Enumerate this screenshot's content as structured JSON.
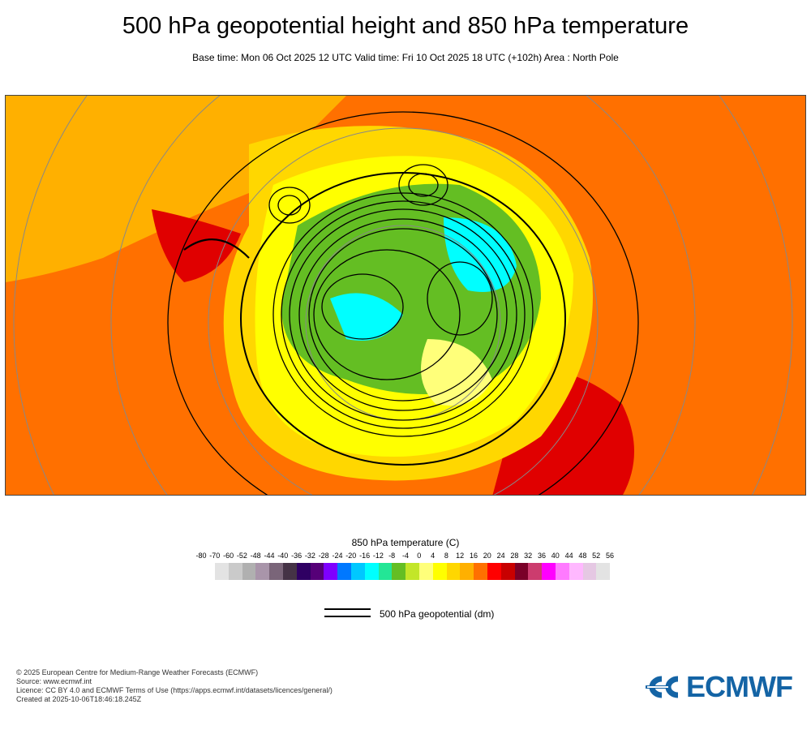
{
  "header": {
    "title": "500 hPa geopotential height and 850 hPa temperature",
    "subtitle": "Base time: Mon 06 Oct 2025 12 UTC Valid time: Fri 10 Oct 2025 18 UTC (+102h) Area : North Pole"
  },
  "map": {
    "projection": "polar stereographic",
    "area": "North Pole"
  },
  "colorbar": {
    "title": "850 hPa temperature (C)",
    "labels": [
      "-80",
      "-70",
      "-60",
      "-52",
      "-48",
      "-44",
      "-40",
      "-36",
      "-32",
      "-28",
      "-24",
      "-20",
      "-16",
      "-12",
      "-8",
      "-4",
      "0",
      "4",
      "8",
      "12",
      "16",
      "20",
      "24",
      "28",
      "32",
      "36",
      "40",
      "44",
      "48",
      "52",
      "56"
    ],
    "colors": [
      "#e3e3e3",
      "#cacaca",
      "#b0b0b0",
      "#a995aa",
      "#7a6579",
      "#453346",
      "#2f0063",
      "#560078",
      "#7e00ff",
      "#0078ff",
      "#00c8ff",
      "#00ffff",
      "#23e696",
      "#64be23",
      "#c3e628",
      "#ffff7a",
      "#ffff00",
      "#ffd700",
      "#ffb000",
      "#ff7000",
      "#ff0000",
      "#c80000",
      "#7a0028",
      "#cc3c6e",
      "#ff00ff",
      "#ff7aff",
      "#ffb8ff",
      "#e5c8e3",
      "#e3e3e3"
    ]
  },
  "legend": {
    "label": "500 hPa geopotential (dm)"
  },
  "footer": {
    "line1": "© 2025 European Centre for Medium-Range Weather Forecasts (ECMWF)",
    "line2": "Source: www.ecmwf.int",
    "line3": "Licence: CC BY 4.0 and ECMWF Terms of Use (https://apps.ecmwf.int/datasets/licences/general/)",
    "line4": "Created at 2025-10-06T18:46:18.245Z"
  },
  "logo": {
    "text": "ECMWF",
    "color": "#1464a5"
  }
}
